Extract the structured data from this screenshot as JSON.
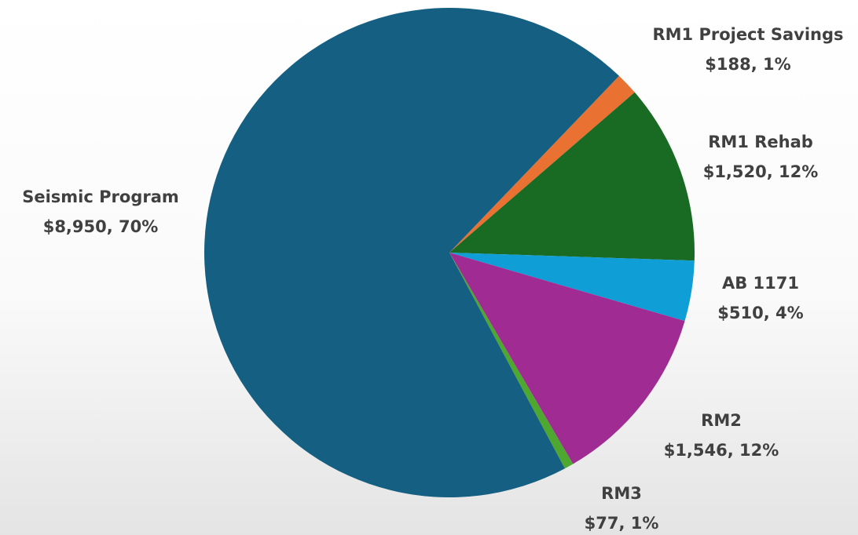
{
  "chart_data": {
    "type": "pie",
    "categories": [
      "RM1 Project Savings",
      "RM1 Rehab",
      "AB 1171",
      "RM2",
      "RM3",
      "Seismic Program"
    ],
    "values": [
      188,
      1520,
      510,
      1546,
      77,
      8950
    ],
    "value_labels": [
      "$188, 1%",
      "$1,520, 12%",
      "$510, 4%",
      "$1,546, 12%",
      "$77, 1%",
      "$8,950, 70%"
    ],
    "colors": [
      "#e97132",
      "#196b24",
      "#0f9ed5",
      "#a02b93",
      "#4ea72e",
      "#156082"
    ]
  }
}
